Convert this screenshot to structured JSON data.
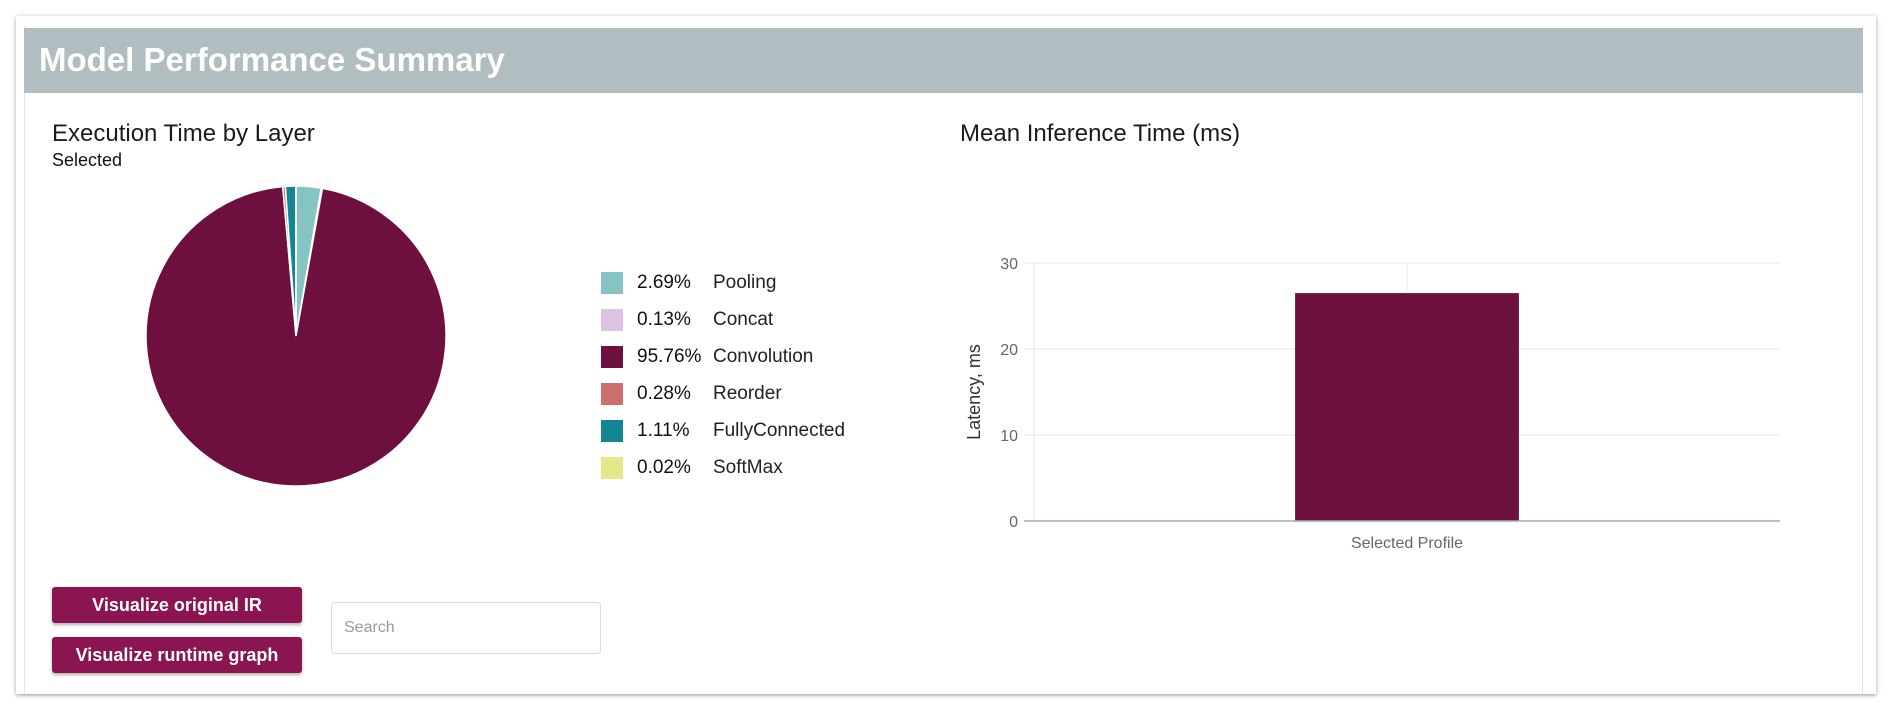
{
  "header": {
    "title": "Model Performance Summary"
  },
  "left": {
    "title": "Execution Time by Layer",
    "selected_label": "Selected",
    "legend": [
      {
        "pct": "2.69%",
        "name": "Pooling",
        "color": "#86c3c3"
      },
      {
        "pct": "0.13%",
        "name": "Concat",
        "color": "#dcc3e3"
      },
      {
        "pct": "95.76%",
        "name": "Convolution",
        "color": "#6d1040"
      },
      {
        "pct": "0.28%",
        "name": "Reorder",
        "color": "#cf6e6e"
      },
      {
        "pct": "1.11%",
        "name": "FullyConnected",
        "color": "#148592"
      },
      {
        "pct": "0.02%",
        "name": "SoftMax",
        "color": "#e6e68a"
      }
    ],
    "buttons": {
      "visualize_ir": "Visualize original IR",
      "visualize_runtime": "Visualize runtime graph"
    },
    "search": {
      "placeholder": "Search",
      "value": ""
    }
  },
  "right": {
    "title": "Mean Inference Time (ms)"
  },
  "chart_data": [
    {
      "type": "pie",
      "labels": [
        "Pooling",
        "Concat",
        "Convolution",
        "Reorder",
        "FullyConnected",
        "SoftMax"
      ],
      "values": [
        2.69,
        0.13,
        95.76,
        0.28,
        1.11,
        0.02
      ],
      "colors": [
        "#86c3c3",
        "#dcc3e3",
        "#6d1040",
        "#cf6e6e",
        "#148592",
        "#e6e68a"
      ],
      "legend": "right"
    },
    {
      "type": "bar",
      "categories": [
        "Selected Profile"
      ],
      "values": [
        26.5
      ],
      "ylabel": "Latency, ms",
      "ylim": [
        0,
        30
      ],
      "yticks": [
        "0",
        "10",
        "20",
        "30"
      ],
      "color": "#6d1040",
      "grid": true
    }
  ]
}
